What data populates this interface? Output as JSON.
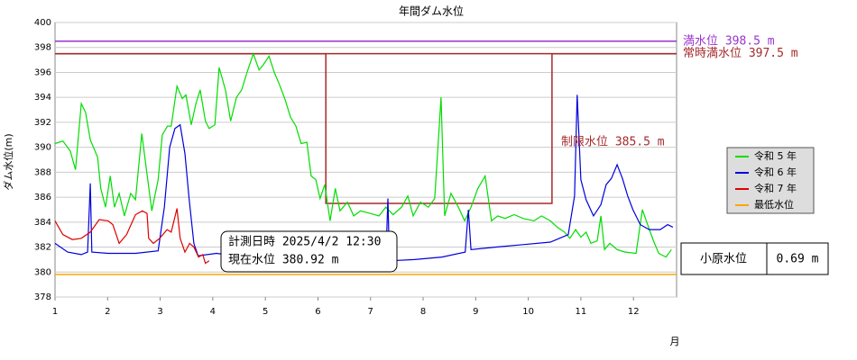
{
  "chart_data": {
    "type": "line",
    "title": "年間ダム水位",
    "y_label": "ダム水位(m)",
    "x_label": "月",
    "xlim": [
      1,
      12.82
    ],
    "ylim": [
      378,
      400
    ],
    "xticks": [
      1,
      2,
      3,
      4,
      5,
      6,
      7,
      8,
      9,
      10,
      11,
      12
    ],
    "yticks": [
      378,
      380,
      382,
      384,
      386,
      388,
      390,
      392,
      394,
      396,
      398,
      400
    ],
    "grid": true,
    "grid_color": "#cccccc",
    "series": [
      {
        "name": "令和 5 年",
        "color": "#00dd00",
        "x": [
          1.0,
          1.15,
          1.29,
          1.39,
          1.5,
          1.58,
          1.67,
          1.81,
          1.87,
          1.96,
          2.05,
          2.13,
          2.22,
          2.32,
          2.44,
          2.53,
          2.65,
          2.73,
          2.84,
          2.96,
          3.04,
          3.14,
          3.21,
          3.32,
          3.42,
          3.49,
          3.59,
          3.68,
          3.76,
          3.86,
          3.93,
          4.04,
          4.12,
          4.24,
          4.34,
          4.45,
          4.55,
          4.65,
          4.77,
          4.88,
          4.96,
          5.07,
          5.17,
          5.27,
          5.37,
          5.48,
          5.58,
          5.68,
          5.79,
          5.87,
          5.96,
          6.04,
          6.13,
          6.23,
          6.33,
          6.42,
          6.56,
          6.68,
          6.81,
          6.99,
          7.16,
          7.29,
          7.43,
          7.59,
          7.71,
          7.81,
          7.95,
          8.1,
          8.22,
          8.34,
          8.41,
          8.53,
          8.67,
          8.79,
          8.91,
          9.04,
          9.18,
          9.3,
          9.42,
          9.56,
          9.73,
          9.9,
          10.11,
          10.25,
          10.42,
          10.55,
          10.69,
          10.79,
          10.9,
          11.0,
          11.1,
          11.19,
          11.31,
          11.38,
          11.45,
          11.55,
          11.69,
          11.84,
          12.05,
          12.17,
          12.27,
          12.38,
          12.48,
          12.62,
          12.72
        ],
        "values": [
          390.3,
          390.5,
          389.7,
          388.2,
          393.5,
          392.8,
          390.6,
          389.2,
          386.7,
          385.2,
          387.7,
          385.2,
          386.3,
          384.5,
          386.3,
          385.8,
          391.1,
          388.5,
          384.9,
          387.4,
          391.0,
          391.7,
          391.7,
          394.9,
          393.9,
          394.2,
          391.8,
          393.5,
          394.6,
          392.1,
          391.5,
          391.8,
          396.4,
          394.6,
          392.1,
          394.0,
          394.6,
          396.0,
          397.5,
          396.2,
          396.6,
          397.3,
          396.0,
          395.0,
          393.9,
          392.4,
          391.7,
          390.3,
          390.4,
          387.7,
          387.4,
          385.9,
          387.0,
          384.1,
          386.7,
          384.9,
          385.6,
          384.5,
          384.9,
          384.7,
          384.5,
          385.2,
          384.6,
          385.2,
          386.1,
          384.5,
          385.6,
          385.2,
          385.9,
          394.0,
          384.5,
          386.3,
          385.2,
          384.1,
          385.2,
          386.7,
          387.7,
          384.1,
          384.5,
          384.3,
          384.6,
          384.3,
          384.1,
          384.5,
          384.1,
          383.6,
          383.2,
          382.7,
          383.4,
          382.8,
          383.2,
          382.3,
          382.5,
          384.5,
          381.8,
          382.3,
          381.8,
          381.6,
          381.5,
          385.0,
          383.8,
          382.5,
          381.5,
          381.2,
          381.8
        ]
      },
      {
        "name": "令和 6 年",
        "color": "#0000dd",
        "x": [
          1.0,
          1.24,
          1.5,
          1.62,
          1.67,
          1.7,
          2.01,
          2.53,
          2.96,
          3.08,
          3.18,
          3.28,
          3.38,
          3.47,
          3.55,
          3.64,
          3.72,
          4.07,
          4.41,
          4.76,
          5.1,
          5.44,
          5.79,
          6.13,
          6.47,
          6.81,
          7.29,
          7.33,
          7.36,
          7.84,
          8.36,
          8.8,
          8.86,
          8.91,
          9.39,
          9.9,
          10.42,
          10.76,
          10.88,
          10.93,
          11.0,
          11.1,
          11.24,
          11.38,
          11.48,
          11.58,
          11.69,
          11.79,
          11.89,
          11.99,
          12.13,
          12.3,
          12.51,
          12.65,
          12.75
        ],
        "values": [
          382.3,
          381.6,
          381.4,
          381.6,
          387.1,
          381.6,
          381.5,
          381.5,
          381.7,
          385.2,
          390.0,
          391.5,
          391.8,
          389.5,
          385.9,
          382.3,
          381.3,
          381.5,
          381.3,
          381.0,
          380.7,
          380.5,
          380.5,
          380.6,
          380.7,
          380.7,
          380.9,
          385.9,
          380.9,
          381.0,
          381.2,
          381.6,
          385.0,
          381.8,
          382.0,
          382.2,
          382.4,
          383.0,
          386.1,
          394.2,
          387.4,
          385.8,
          384.5,
          385.4,
          387.0,
          387.5,
          388.6,
          387.5,
          386.1,
          385.0,
          383.8,
          383.4,
          383.4,
          383.8,
          383.6
        ]
      },
      {
        "name": "令和 7 年",
        "color": "#dd0000",
        "x": [
          1.0,
          1.15,
          1.33,
          1.5,
          1.67,
          1.84,
          2.01,
          2.1,
          2.22,
          2.36,
          2.53,
          2.66,
          2.75,
          2.78,
          2.87,
          2.99,
          3.13,
          3.21,
          3.32,
          3.38,
          3.47,
          3.56,
          3.64,
          3.73,
          3.81,
          3.86,
          3.93
        ],
        "values": [
          384.1,
          383.0,
          382.6,
          382.7,
          383.2,
          384.2,
          384.1,
          383.8,
          382.3,
          383.0,
          384.6,
          384.9,
          384.7,
          382.7,
          382.3,
          382.7,
          383.4,
          383.2,
          385.1,
          382.7,
          381.6,
          382.3,
          382.0,
          381.2,
          381.4,
          380.7,
          380.9
        ]
      }
    ],
    "ref_lines": [
      {
        "label": "満水位 398.5 m",
        "value": 398.5,
        "color": "#9933cc"
      },
      {
        "label": "常時満水位 397.5 m",
        "value": 397.5,
        "color": "#a52a2a"
      },
      {
        "name": "最低水位",
        "value": 379.8,
        "color": "#ffa500"
      }
    ],
    "rule_curve": {
      "label": "制限水位 385.5 m",
      "color": "#a52a2a",
      "x": [
        1,
        6.15,
        6.15,
        10.45,
        10.45,
        12.82
      ],
      "values": [
        397.5,
        397.5,
        385.5,
        385.5,
        397.5,
        397.5
      ]
    }
  },
  "info_box": {
    "lines": [
      "計測日時 2025/4/2 12:30",
      "現在水位 380.92 m"
    ]
  },
  "side_table": {
    "label": "小原水位",
    "value": "0.69 m"
  }
}
